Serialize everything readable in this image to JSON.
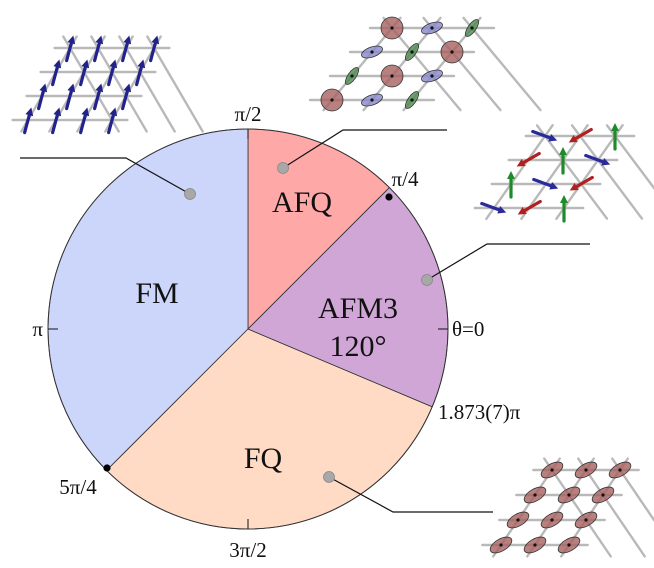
{
  "diagram": {
    "regions": [
      {
        "id": "afq",
        "label": "AFQ",
        "start_deg": 45,
        "end_deg": 90,
        "fill": "#ffa8a8"
      },
      {
        "id": "fm",
        "label": "FM",
        "start_deg": 90,
        "end_deg": 225,
        "fill": "#ccd5fa"
      },
      {
        "id": "fq",
        "label": "FQ",
        "start_deg": 225,
        "end_deg": 337.1,
        "fill": "#ffdac4"
      },
      {
        "id": "afm3",
        "label": "AFM3",
        "sublabel": "120°",
        "start_deg": 337.1,
        "end_deg": 405,
        "fill": "#d0a6d6"
      }
    ],
    "angle_labels": {
      "pi_over_2": "π/2",
      "pi_over_4": "π/4",
      "theta_zero": "θ=0",
      "transition": "1.873(7)π",
      "pi": "π",
      "five_pi_over_4": "5π/4",
      "three_pi_over_2": "3π/2"
    },
    "colors": {
      "marker_gray": "#a8a8a8",
      "ferro_arrow": "#22228a",
      "afm_red": "#b02020",
      "afm_blue": "#2a2a9a",
      "afm_green": "#1e8a2a",
      "quad_red": "#a86060",
      "quad_blue": "#8888cc",
      "quad_green": "#4c8a4c"
    }
  }
}
